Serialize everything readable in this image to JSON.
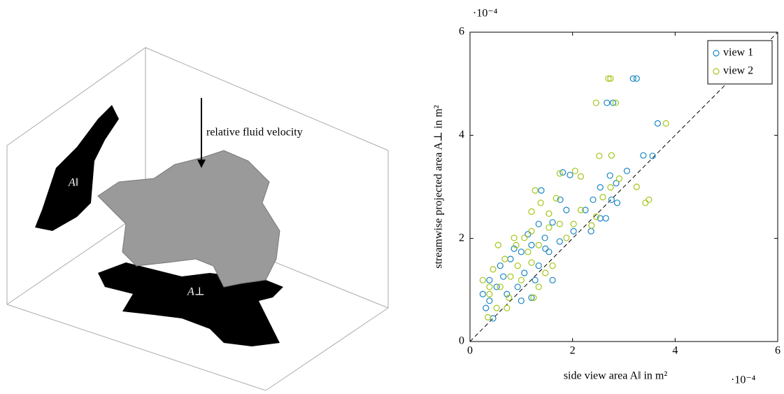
{
  "illustration": {
    "arrow_label": "relative fluid velocity",
    "side_label": "A‖",
    "bottom_label": "A⊥"
  },
  "chart_data": {
    "type": "scatter",
    "xlabel": "side view area A‖ in m²",
    "ylabel": "streamwise projected area A⊥ in m²",
    "x_multiplier": "·10⁻⁴",
    "y_multiplier": "·10⁻⁴",
    "xlim": [
      0,
      6
    ],
    "ylim": [
      0,
      6
    ],
    "xticks": [
      0,
      2,
      4,
      6
    ],
    "yticks": [
      0,
      2,
      4,
      6
    ],
    "legend": "upper right",
    "series": [
      {
        "name": "view 1",
        "color": "#1a86c4",
        "x": [
          3.18,
          3.25,
          2.67,
          2.79,
          3.66,
          3.38,
          3.56,
          3.06,
          2.73,
          2.54,
          2.85,
          2.87,
          2.76,
          2.65,
          2.54,
          2.25,
          1.81,
          1.95,
          1.39,
          1.76,
          1.61,
          1.46,
          1.2,
          1.0,
          0.79,
          0.59,
          0.38,
          0.25,
          0.31,
          0.45,
          1.2,
          0.93,
          0.65,
          1.06,
          1.34,
          1.54,
          1.75,
          2.02,
          1.34,
          1.13,
          0.86,
          0.52,
          0.72,
          0.38,
          1.27,
          1.47,
          1.88,
          2.36,
          2.4,
          1.61,
          1.0
        ],
        "y": [
          5.1,
          5.1,
          4.63,
          4.63,
          4.23,
          3.61,
          3.6,
          3.31,
          3.22,
          2.99,
          3.07,
          2.69,
          2.75,
          2.39,
          2.39,
          2.55,
          3.28,
          3.23,
          2.93,
          2.75,
          2.31,
          2.01,
          1.87,
          1.74,
          1.6,
          1.47,
          1.19,
          0.92,
          0.65,
          0.45,
          0.85,
          1.06,
          1.26,
          1.33,
          1.47,
          1.74,
          1.94,
          2.14,
          2.28,
          2.08,
          1.8,
          1.06,
          0.92,
          0.79,
          1.19,
          1.8,
          2.55,
          2.14,
          2.75,
          1.19,
          0.79
        ]
      },
      {
        "name": "view 2",
        "color": "#a2c617",
        "x": [
          2.7,
          2.74,
          2.46,
          2.84,
          3.82,
          2.76,
          2.52,
          2.05,
          1.75,
          2.16,
          2.91,
          3.25,
          2.74,
          3.42,
          3.49,
          2.59,
          2.46,
          2.37,
          2.16,
          1.27,
          1.68,
          1.38,
          1.2,
          1.75,
          1.54,
          1.06,
          0.9,
          0.55,
          0.68,
          0.45,
          0.25,
          0.38,
          0.35,
          0.52,
          0.76,
          1.24,
          1.0,
          1.34,
          1.47,
          1.61,
          1.2,
          0.93,
          0.79,
          0.59,
          1.88,
          1.2,
          0.86,
          1.34,
          2.02,
          1.54,
          1.13,
          0.38,
          0.72
        ],
        "y": [
          5.1,
          5.1,
          4.63,
          4.63,
          4.23,
          3.61,
          3.6,
          3.31,
          3.26,
          3.2,
          3.16,
          3.0,
          2.99,
          2.69,
          2.75,
          2.8,
          2.42,
          2.25,
          2.55,
          2.93,
          2.78,
          2.69,
          2.52,
          2.28,
          2.21,
          2.01,
          1.87,
          1.87,
          1.6,
          1.4,
          1.19,
          0.92,
          0.47,
          0.65,
          0.85,
          0.85,
          1.19,
          1.06,
          1.33,
          1.47,
          1.53,
          1.47,
          1.26,
          1.06,
          2.01,
          2.14,
          2.01,
          1.87,
          2.28,
          2.48,
          1.74,
          1.06,
          0.65
        ]
      }
    ]
  }
}
